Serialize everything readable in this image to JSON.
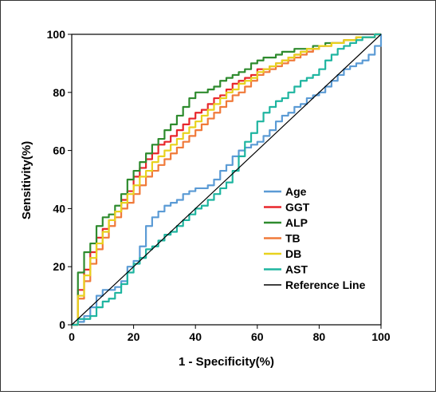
{
  "chart_data": {
    "type": "line",
    "title": "",
    "xlabel": "1 - Specificity(%)",
    "ylabel": "Sensitivity(%)",
    "xlim": [
      0,
      100
    ],
    "ylim": [
      0,
      100
    ],
    "xticks": [
      "0",
      "20",
      "40",
      "60",
      "80",
      "100"
    ],
    "yticks": [
      "0",
      "20",
      "40",
      "60",
      "80",
      "100"
    ],
    "grid": false,
    "legend_position": "bottom-right",
    "series": [
      {
        "name": "Age",
        "color": "#5b9bd5",
        "x": [
          0,
          2,
          4,
          6,
          8,
          10,
          12,
          14,
          16,
          18,
          20,
          22,
          24,
          26,
          28,
          30,
          32,
          34,
          36,
          38,
          40,
          42,
          44,
          46,
          48,
          50,
          52,
          54,
          56,
          58,
          60,
          62,
          64,
          66,
          68,
          70,
          72,
          74,
          76,
          78,
          80,
          82,
          84,
          86,
          88,
          90,
          92,
          94,
          96,
          98,
          100
        ],
        "y": [
          0,
          1,
          3,
          6,
          10,
          12,
          12,
          13,
          15,
          20,
          22,
          27,
          34,
          37,
          39,
          41,
          42,
          43,
          45,
          46,
          47,
          47,
          48,
          50,
          53,
          55,
          58,
          60,
          61,
          62,
          63,
          65,
          67,
          70,
          72,
          73,
          75,
          76,
          78,
          79,
          80,
          82,
          84,
          86,
          88,
          89,
          90,
          91,
          93,
          96,
          100
        ]
      },
      {
        "name": "GGT",
        "color": "#e8262b",
        "x": [
          0,
          2,
          4,
          6,
          8,
          10,
          12,
          14,
          16,
          18,
          20,
          22,
          24,
          26,
          28,
          30,
          32,
          34,
          36,
          38,
          40,
          42,
          44,
          46,
          48,
          50,
          52,
          54,
          56,
          58,
          60,
          62,
          64,
          66,
          68,
          70,
          72,
          74,
          76,
          78,
          80,
          82,
          84,
          86,
          88,
          90,
          92,
          94,
          96,
          98,
          100
        ],
        "y": [
          0,
          12,
          19,
          25,
          30,
          33,
          36,
          39,
          43,
          46,
          51,
          54,
          57,
          59,
          62,
          63,
          65,
          67,
          69,
          71,
          73,
          74,
          76,
          78,
          79,
          81,
          83,
          84,
          85,
          86,
          88,
          88,
          89,
          90,
          91,
          92,
          93,
          94,
          94,
          95,
          96,
          96,
          97,
          97,
          98,
          98,
          99,
          99,
          99,
          100,
          100
        ]
      },
      {
        "name": "ALP",
        "color": "#2e8b2e",
        "x": [
          0,
          2,
          4,
          6,
          8,
          10,
          12,
          14,
          16,
          18,
          20,
          22,
          24,
          26,
          28,
          30,
          32,
          34,
          36,
          38,
          40,
          42,
          44,
          46,
          48,
          50,
          52,
          54,
          56,
          58,
          60,
          62,
          64,
          66,
          68,
          70,
          72,
          74,
          76,
          78,
          80,
          82,
          84,
          86,
          88,
          90,
          92,
          94,
          96,
          98,
          100
        ],
        "y": [
          0,
          18,
          25,
          28,
          34,
          37,
          38,
          41,
          45,
          50,
          53,
          56,
          59,
          62,
          64,
          67,
          69,
          72,
          75,
          78,
          80,
          80,
          81,
          82,
          84,
          85,
          86,
          87,
          88,
          90,
          91,
          92,
          92,
          93,
          94,
          94,
          95,
          95,
          95,
          96,
          96,
          97,
          97,
          97,
          98,
          98,
          99,
          99,
          99,
          100,
          100
        ]
      },
      {
        "name": "TB",
        "color": "#f07a3a",
        "x": [
          0,
          2,
          4,
          6,
          8,
          10,
          12,
          14,
          16,
          18,
          20,
          22,
          24,
          26,
          28,
          30,
          32,
          34,
          36,
          38,
          40,
          42,
          44,
          46,
          48,
          50,
          52,
          54,
          56,
          58,
          60,
          62,
          64,
          66,
          68,
          70,
          72,
          74,
          76,
          78,
          80,
          82,
          84,
          86,
          88,
          90,
          92,
          94,
          96,
          98,
          100
        ],
        "y": [
          0,
          9,
          15,
          21,
          26,
          30,
          34,
          37,
          40,
          42,
          45,
          48,
          51,
          53,
          55,
          57,
          59,
          61,
          63,
          65,
          67,
          69,
          71,
          73,
          75,
          77,
          79,
          80,
          82,
          84,
          86,
          87,
          88,
          89,
          90,
          91,
          92,
          93,
          94,
          95,
          96,
          96,
          97,
          97,
          98,
          98,
          99,
          99,
          99,
          100,
          100
        ]
      },
      {
        "name": "DB",
        "color": "#e8d21e",
        "x": [
          0,
          2,
          4,
          6,
          8,
          10,
          12,
          14,
          16,
          18,
          20,
          22,
          24,
          26,
          28,
          30,
          32,
          34,
          36,
          38,
          40,
          42,
          44,
          46,
          48,
          50,
          52,
          54,
          56,
          58,
          60,
          62,
          64,
          66,
          68,
          70,
          72,
          74,
          76,
          78,
          80,
          82,
          84,
          86,
          88,
          90,
          92,
          94,
          96,
          98,
          100
        ],
        "y": [
          0,
          10,
          17,
          23,
          28,
          32,
          36,
          39,
          42,
          45,
          48,
          51,
          53,
          56,
          58,
          60,
          62,
          64,
          66,
          68,
          70,
          72,
          74,
          76,
          78,
          80,
          81,
          83,
          84,
          85,
          87,
          88,
          89,
          90,
          91,
          92,
          93,
          94,
          95,
          95,
          96,
          96,
          97,
          97,
          98,
          98,
          99,
          99,
          99,
          100,
          100
        ]
      },
      {
        "name": "AST",
        "color": "#1fb5a0",
        "x": [
          0,
          2,
          4,
          6,
          8,
          10,
          12,
          14,
          16,
          18,
          20,
          22,
          24,
          26,
          28,
          30,
          32,
          34,
          36,
          38,
          40,
          42,
          44,
          46,
          48,
          50,
          52,
          54,
          56,
          58,
          60,
          62,
          64,
          66,
          68,
          70,
          72,
          74,
          76,
          78,
          80,
          82,
          84,
          86,
          88,
          90,
          92,
          94,
          96,
          98,
          100
        ],
        "y": [
          0,
          2,
          2,
          3,
          6,
          8,
          9,
          11,
          14,
          18,
          21,
          23,
          26,
          27,
          29,
          31,
          32,
          34,
          36,
          38,
          40,
          41,
          43,
          45,
          47,
          49,
          53,
          58,
          63,
          66,
          70,
          73,
          75,
          77,
          78,
          80,
          82,
          84,
          85,
          86,
          88,
          91,
          93,
          95,
          96,
          97,
          98,
          99,
          99,
          100,
          100
        ]
      },
      {
        "name": "Reference Line",
        "color": "#000000",
        "x": [
          0,
          100
        ],
        "y": [
          0,
          100
        ]
      }
    ]
  }
}
